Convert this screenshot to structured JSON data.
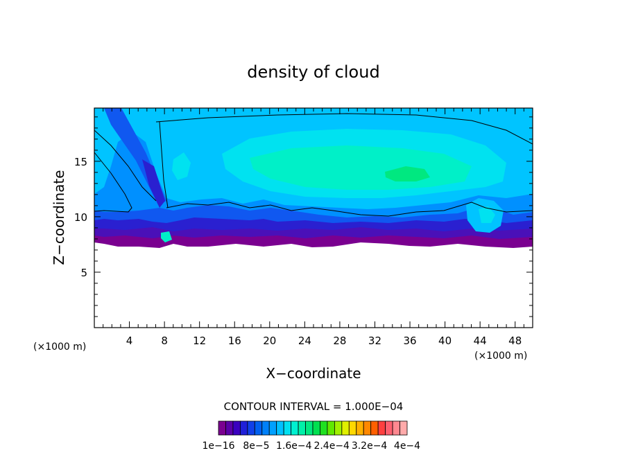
{
  "chart_data": {
    "type": "heatmap",
    "title": "density of cloud",
    "xlabel": "X−coordinate",
    "ylabel": "Z−coordinate",
    "x_unit_left": "(×1000 m)",
    "x_unit_right": "(×1000 m)",
    "xlim": [
      0,
      50
    ],
    "ylim": [
      0,
      19.8
    ],
    "x_ticks": [
      "4",
      "8",
      "12",
      "16",
      "20",
      "24",
      "28",
      "32",
      "36",
      "40",
      "44",
      "48"
    ],
    "x_tick_values": [
      4,
      8,
      12,
      16,
      20,
      24,
      28,
      32,
      36,
      40,
      44,
      48
    ],
    "y_ticks": [
      "5",
      "10",
      "15"
    ],
    "y_tick_values": [
      5,
      10,
      15
    ],
    "contour_interval": "CONTOUR INTERVAL =  1.000E−04",
    "colorbar": {
      "labels": [
        "1e−16",
        "8e−5",
        "1.6e−4",
        "2.4e−4",
        "3.2e−4",
        "4e−4"
      ],
      "colors": [
        "#7a0090",
        "#5a00a8",
        "#3a00c0",
        "#2020d8",
        "#1040e8",
        "#0060f0",
        "#0080f8",
        "#00a0ff",
        "#00c0ff",
        "#00e0f0",
        "#00f0d0",
        "#00f0a8",
        "#00e880",
        "#00e050",
        "#20e020",
        "#60e800",
        "#a0f000",
        "#e0f000",
        "#ffd800",
        "#ffb000",
        "#ff8800",
        "#ff6000",
        "#ff4040",
        "#ff6070",
        "#ff8890",
        "#ffaaaa"
      ]
    },
    "field_colors": {
      "purple": "#7a0090",
      "violet": "#5a00a8",
      "dark_blue": "#2a20c8",
      "blue": "#1050f0",
      "mid_blue": "#0090ff",
      "sky": "#00c0ff",
      "cyan": "#00e0f0",
      "aqua": "#00f0c8",
      "green": "#00e880"
    }
  }
}
